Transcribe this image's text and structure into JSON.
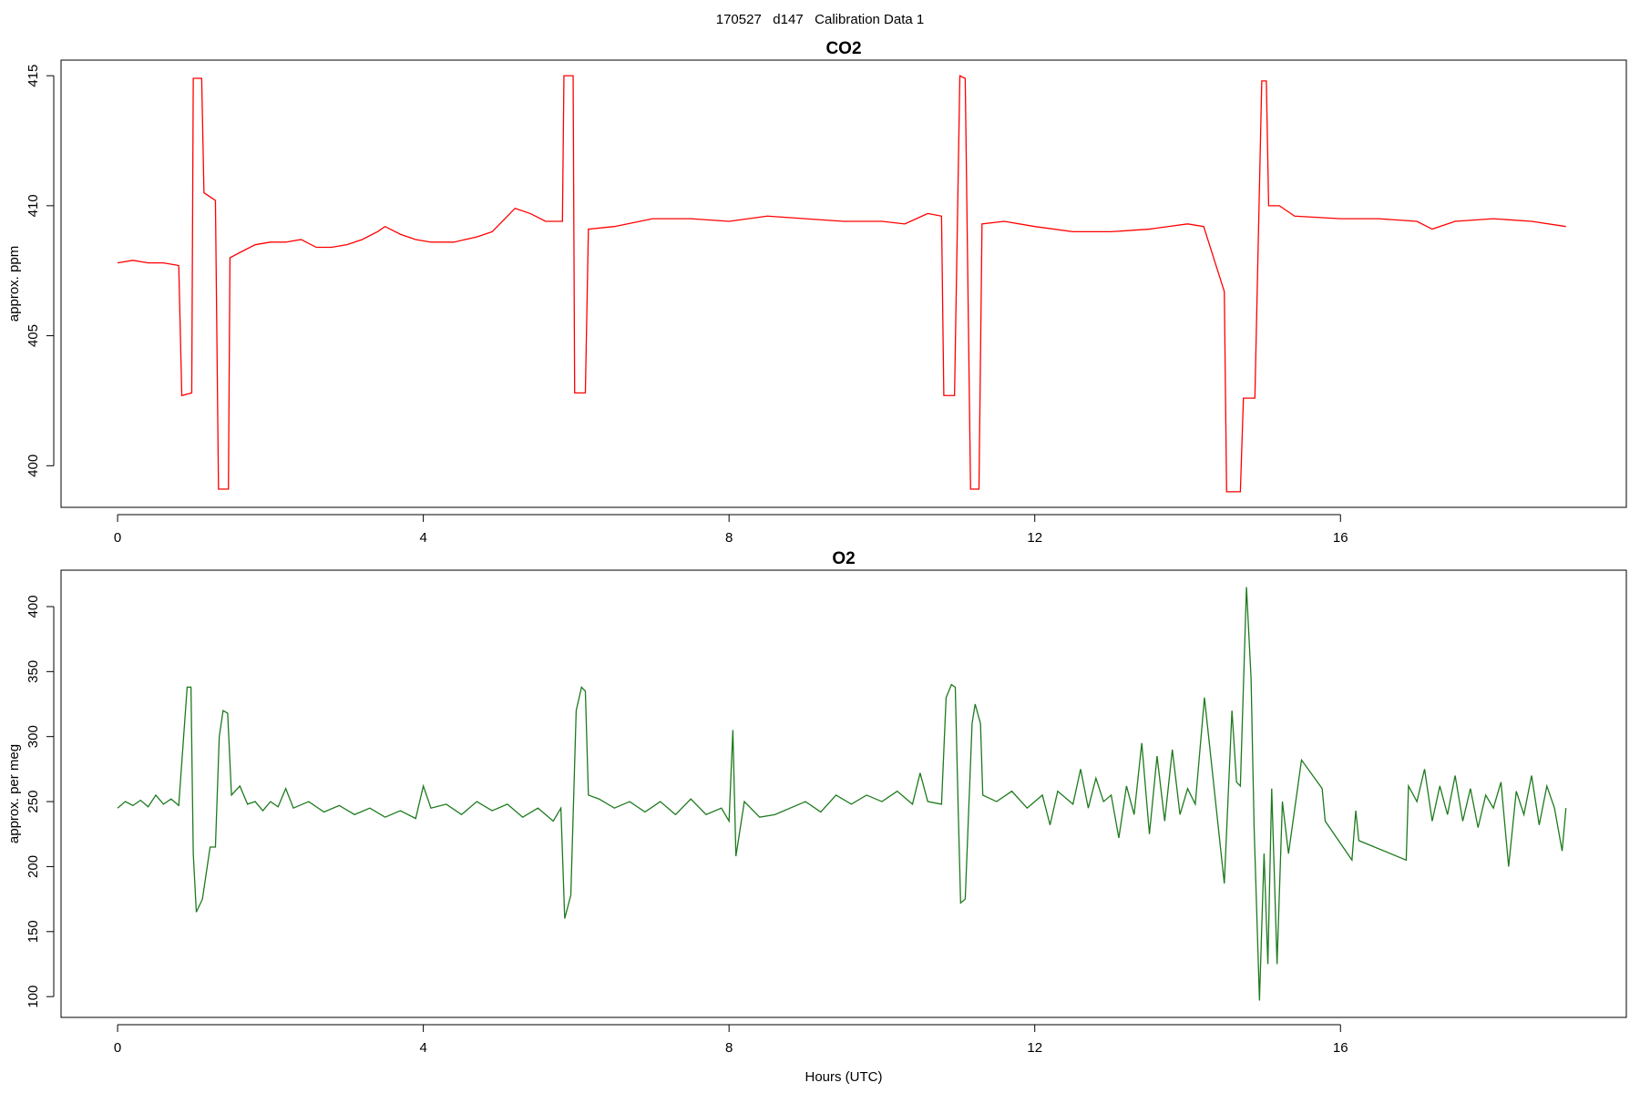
{
  "title": "170527   d147   Calibration Data 1",
  "chart_data": [
    {
      "type": "line",
      "title": "CO2",
      "ylabel": "approx. ppm",
      "xlim": [
        -0.74,
        19.74
      ],
      "ylim": [
        398.4,
        415.6
      ],
      "xticks": [
        0,
        4,
        8,
        12,
        16
      ],
      "yticks": [
        400,
        405,
        410,
        415
      ],
      "x": [
        0,
        0.2,
        0.4,
        0.6,
        0.8,
        0.84,
        0.97,
        0.99,
        1.1,
        1.13,
        1.28,
        1.32,
        1.45,
        1.47,
        1.6,
        1.8,
        2.0,
        2.2,
        2.4,
        2.6,
        2.8,
        3.0,
        3.2,
        3.4,
        3.5,
        3.7,
        3.9,
        4.1,
        4.4,
        4.7,
        4.9,
        5.1,
        5.2,
        5.4,
        5.6,
        5.82,
        5.84,
        5.96,
        5.98,
        6.12,
        6.16,
        6.5,
        7.0,
        7.5,
        8.0,
        8.5,
        9.0,
        9.5,
        10.0,
        10.3,
        10.6,
        10.78,
        10.81,
        10.95,
        11.02,
        11.09,
        11.16,
        11.27,
        11.31,
        11.6,
        12.0,
        12.5,
        13.0,
        13.5,
        14.0,
        14.21,
        14.48,
        14.51,
        14.69,
        14.73,
        14.88,
        14.97,
        15.03,
        15.06,
        15.2,
        15.4,
        16.0,
        16.5,
        17.0,
        17.2,
        17.5,
        18.0,
        18.5,
        18.95
      ],
      "series": [
        {
          "color": "#ff0000",
          "values": [
            407.8,
            407.9,
            407.8,
            407.8,
            407.7,
            402.7,
            402.8,
            414.9,
            414.9,
            410.5,
            410.2,
            399.1,
            399.1,
            408.0,
            408.2,
            408.5,
            408.6,
            408.6,
            408.7,
            408.4,
            408.4,
            408.5,
            408.7,
            409.0,
            409.2,
            408.9,
            408.7,
            408.6,
            408.6,
            408.8,
            409.0,
            409.6,
            409.9,
            409.7,
            409.4,
            409.4,
            415.0,
            415.0,
            402.8,
            402.8,
            409.1,
            409.2,
            409.5,
            409.5,
            409.4,
            409.6,
            409.5,
            409.4,
            409.4,
            409.3,
            409.7,
            409.6,
            402.7,
            402.7,
            415.0,
            414.9,
            399.1,
            399.1,
            409.3,
            409.4,
            409.2,
            409.0,
            409.0,
            409.1,
            409.3,
            409.2,
            406.7,
            399.0,
            399.0,
            402.6,
            402.6,
            414.8,
            414.8,
            410.0,
            410.0,
            409.6,
            409.5,
            409.5,
            409.4,
            409.1,
            409.4,
            409.5,
            409.4,
            409.2
          ]
        }
      ]
    },
    {
      "type": "line",
      "title": "O2",
      "ylabel": "approx. per meg",
      "xlabel": "Hours (UTC)",
      "xlim": [
        -0.74,
        19.74
      ],
      "ylim": [
        84,
        428
      ],
      "xticks": [
        0,
        4,
        8,
        12,
        16
      ],
      "yticks": [
        100,
        150,
        200,
        250,
        300,
        350,
        400
      ],
      "x": [
        0,
        0.1,
        0.2,
        0.3,
        0.4,
        0.5,
        0.6,
        0.7,
        0.8,
        0.87,
        0.91,
        0.96,
        0.99,
        1.03,
        1.11,
        1.21,
        1.28,
        1.33,
        1.38,
        1.44,
        1.49,
        1.6,
        1.7,
        1.8,
        1.9,
        2.0,
        2.1,
        2.2,
        2.3,
        2.5,
        2.7,
        2.9,
        3.1,
        3.3,
        3.5,
        3.7,
        3.9,
        4.0,
        4.1,
        4.3,
        4.5,
        4.7,
        4.9,
        5.1,
        5.3,
        5.5,
        5.7,
        5.8,
        5.85,
        5.93,
        6.0,
        6.07,
        6.12,
        6.16,
        6.3,
        6.5,
        6.7,
        6.9,
        7.1,
        7.3,
        7.5,
        7.7,
        7.9,
        8.0,
        8.05,
        8.09,
        8.2,
        8.4,
        8.6,
        8.8,
        9.0,
        9.2,
        9.4,
        9.6,
        9.8,
        10.0,
        10.2,
        10.4,
        10.5,
        10.6,
        10.78,
        10.84,
        10.91,
        10.96,
        11.0,
        11.03,
        11.09,
        11.18,
        11.22,
        11.29,
        11.32,
        11.5,
        11.7,
        11.9,
        12.1,
        12.2,
        12.3,
        12.5,
        12.6,
        12.7,
        12.8,
        12.9,
        13.0,
        13.1,
        13.2,
        13.3,
        13.4,
        13.5,
        13.6,
        13.7,
        13.8,
        13.9,
        14.0,
        14.1,
        14.22,
        14.48,
        14.58,
        14.64,
        14.69,
        14.77,
        14.83,
        14.87,
        14.94,
        15.0,
        15.05,
        15.1,
        15.17,
        15.24,
        15.32,
        15.49,
        15.76,
        15.8,
        16.15,
        16.2,
        16.24,
        16.86,
        16.89,
        17.0,
        17.1,
        17.2,
        17.3,
        17.4,
        17.5,
        17.6,
        17.7,
        17.8,
        17.9,
        18.0,
        18.1,
        18.2,
        18.3,
        18.4,
        18.5,
        18.6,
        18.7,
        18.8,
        18.9,
        18.95
      ],
      "series": [
        {
          "color": "#1e7a1e",
          "values": [
            245,
            250,
            247,
            251,
            246,
            255,
            248,
            252,
            247,
            305,
            338,
            338,
            210,
            165,
            175,
            215,
            215,
            300,
            320,
            318,
            255,
            262,
            248,
            250,
            243,
            250,
            246,
            260,
            245,
            250,
            242,
            247,
            240,
            245,
            238,
            243,
            237,
            262,
            245,
            248,
            240,
            250,
            243,
            248,
            238,
            245,
            235,
            245,
            160,
            178,
            320,
            338,
            335,
            255,
            252,
            245,
            250,
            242,
            250,
            240,
            252,
            240,
            245,
            235,
            305,
            208,
            250,
            238,
            240,
            245,
            250,
            242,
            255,
            248,
            255,
            250,
            258,
            248,
            272,
            250,
            248,
            330,
            340,
            338,
            240,
            172,
            175,
            310,
            325,
            310,
            255,
            250,
            258,
            245,
            255,
            232,
            258,
            248,
            275,
            245,
            268,
            250,
            255,
            222,
            262,
            240,
            295,
            225,
            285,
            235,
            290,
            240,
            260,
            248,
            330,
            187,
            320,
            265,
            262,
            415,
            345,
            230,
            97,
            210,
            125,
            260,
            125,
            250,
            210,
            282,
            260,
            235,
            205,
            243,
            220,
            205,
            262,
            250,
            275,
            235,
            262,
            240,
            270,
            235,
            260,
            230,
            255,
            245,
            265,
            200,
            258,
            240,
            270,
            232,
            262,
            245,
            212,
            245
          ]
        }
      ]
    }
  ]
}
